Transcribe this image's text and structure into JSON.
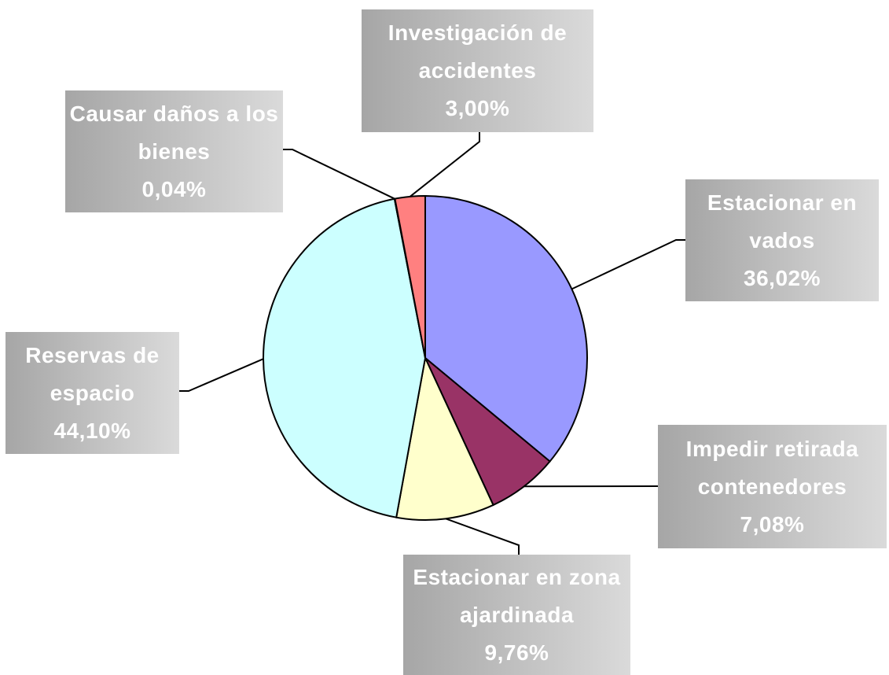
{
  "chart_data": {
    "type": "pie",
    "categories": [
      "Estacionar en vados",
      "Impedir retirada contenedores",
      "Estacionar en zona ajardinada",
      "Reservas de espacio",
      "Causar daños a los bienes",
      "Investigación de accidentes"
    ],
    "values": [
      36.02,
      7.08,
      9.76,
      44.1,
      0.04,
      3.0
    ],
    "value_labels": [
      "36,02%",
      "7,08%",
      "9,76%",
      "44,10%",
      "0,04%",
      "3,00%"
    ],
    "colors": [
      "#9999ff",
      "#993366",
      "#ffffcc",
      "#ccffff",
      "#660066",
      "#ff8080"
    ]
  }
}
